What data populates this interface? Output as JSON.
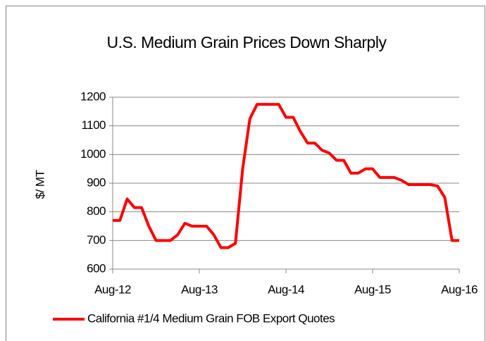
{
  "chart_data": {
    "type": "line",
    "title": "U.S. Medium Grain Prices Down Sharply",
    "y_label": "$/ MT",
    "x": [
      "2012-08",
      "2012-09",
      "2012-10",
      "2012-11",
      "2012-12",
      "2013-01",
      "2013-02",
      "2013-03",
      "2013-04",
      "2013-05",
      "2013-06",
      "2013-07",
      "2013-08",
      "2013-09",
      "2013-10",
      "2013-11",
      "2013-12",
      "2014-01",
      "2014-02",
      "2014-03",
      "2014-04",
      "2014-05",
      "2014-06",
      "2014-07",
      "2014-08",
      "2014-09",
      "2014-10",
      "2014-11",
      "2014-12",
      "2015-01",
      "2015-02",
      "2015-03",
      "2015-04",
      "2015-05",
      "2015-06",
      "2015-07",
      "2015-08",
      "2015-09",
      "2015-10",
      "2015-11",
      "2015-12",
      "2016-01",
      "2016-02",
      "2016-03",
      "2016-04",
      "2016-05",
      "2016-06",
      "2016-07",
      "2016-08"
    ],
    "series": [
      {
        "name": "California #1/4 Medium Grain FOB Export Quotes",
        "color": "#ff0000",
        "values": [
          770,
          770,
          845,
          815,
          815,
          750,
          700,
          700,
          700,
          720,
          760,
          750,
          750,
          750,
          720,
          675,
          675,
          690,
          950,
          1125,
          1175,
          1175,
          1175,
          1175,
          1130,
          1130,
          1080,
          1040,
          1040,
          1015,
          1005,
          980,
          980,
          935,
          935,
          950,
          950,
          920,
          920,
          920,
          910,
          895,
          895,
          895,
          895,
          890,
          850,
          700,
          700
        ]
      }
    ],
    "xlim": [
      "2012-08",
      "2016-08"
    ],
    "xticks": [
      {
        "value": "2012-08",
        "label": "Aug-12"
      },
      {
        "value": "2013-08",
        "label": "Aug-13"
      },
      {
        "value": "2014-08",
        "label": "Aug-14"
      },
      {
        "value": "2015-08",
        "label": "Aug-15"
      },
      {
        "value": "2016-08",
        "label": "Aug-16"
      }
    ],
    "ylim": [
      600,
      1200
    ],
    "yticks": [
      600,
      700,
      800,
      900,
      1000,
      1100,
      1200
    ],
    "grid": true,
    "legend": "bottom"
  }
}
